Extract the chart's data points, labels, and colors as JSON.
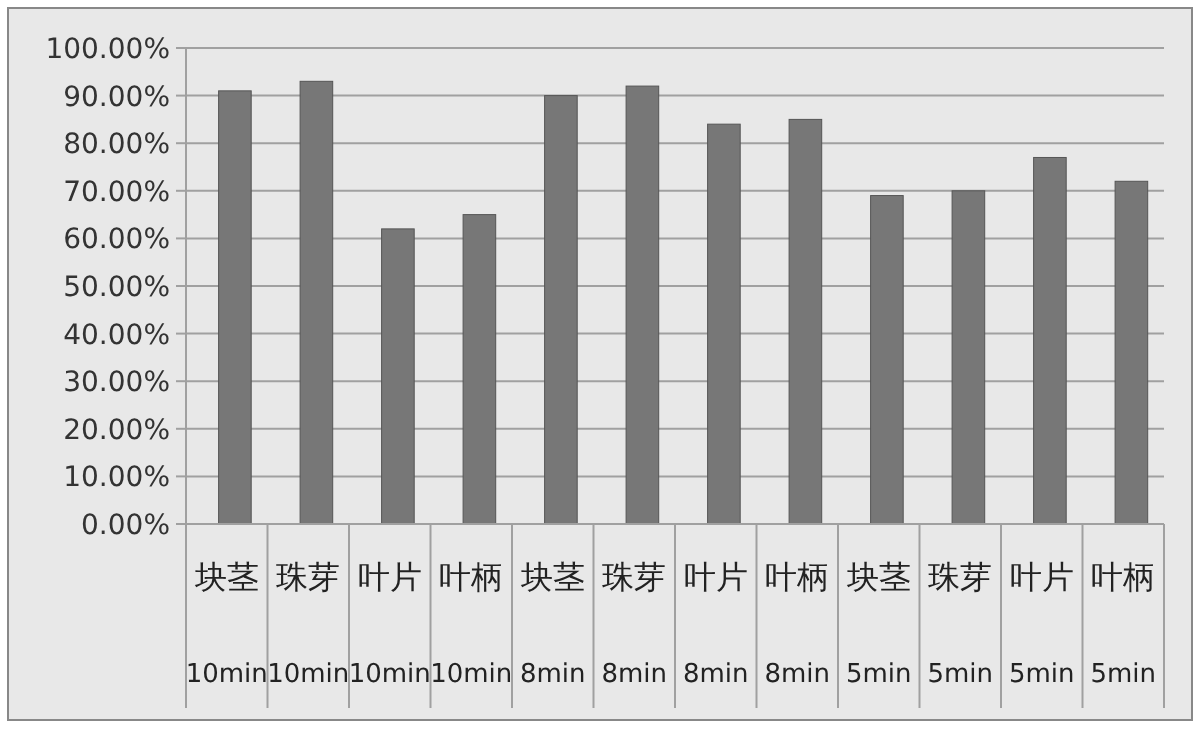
{
  "chart_data": {
    "type": "bar",
    "categories": [
      "块茎\n10min",
      "珠芽\n10min",
      "叶片\n10min",
      "叶柄\n10min",
      "块茎\n8min",
      "珠芽\n8min",
      "叶片\n8min",
      "叶柄\n8min",
      "块茎\n5min",
      "珠芽\n5min",
      "叶片\n5min",
      "叶柄\n5min"
    ],
    "values": [
      91,
      93,
      62,
      65,
      90,
      92,
      84,
      85,
      69,
      70,
      77,
      72
    ],
    "color": "#777777",
    "ylim": [
      0,
      100
    ],
    "yticks": [
      {
        "value": 0,
        "label": "0.00%"
      },
      {
        "value": 10,
        "label": "10.00%"
      },
      {
        "value": 20,
        "label": "20.00%"
      },
      {
        "value": 30,
        "label": "30.00%"
      },
      {
        "value": 40,
        "label": "40.00%"
      },
      {
        "value": 50,
        "label": "50.00%"
      },
      {
        "value": 60,
        "label": "60.00%"
      },
      {
        "value": 70,
        "label": "70.00%"
      },
      {
        "value": 80,
        "label": "80.00%"
      },
      {
        "value": 90,
        "label": "90.00%"
      },
      {
        "value": 100,
        "label": "100.00%"
      }
    ],
    "grid": "y"
  }
}
